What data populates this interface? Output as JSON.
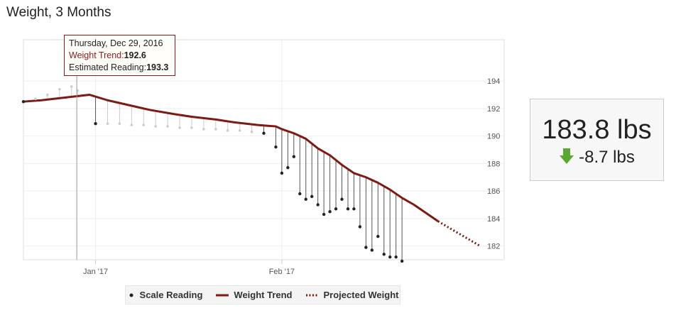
{
  "title": "Weight, 3 Months",
  "summary": {
    "current_weight": "183.8 lbs",
    "change": "-8.7 lbs",
    "change_icon": "down-arrow-icon",
    "change_icon_color": "#5aa832"
  },
  "tooltip": {
    "date": "Thursday, Dec 29, 2016",
    "trend_label": "Weight Trend:",
    "trend_value": "192.6",
    "estimated_label": "Estimated Reading:",
    "estimated_value": "193.3"
  },
  "legend": {
    "scale": "Scale Reading",
    "trend": "Weight Trend",
    "projected": "Projected Weight"
  },
  "colors": {
    "trend": "#7d1a14",
    "projected": "#7d1a14",
    "reading": "#222222",
    "estimated": "#cccccc"
  },
  "chart_data": {
    "type": "line",
    "ylim": [
      181,
      197
    ],
    "yticks": [
      182,
      184,
      186,
      188,
      190,
      192,
      194
    ],
    "xlim": [
      "2016-12-20",
      "2017-03-10"
    ],
    "xticks": [
      {
        "date": "2017-01-01",
        "label": "Jan '17"
      },
      {
        "date": "2017-02-01",
        "label": "Feb '17"
      }
    ],
    "grid": true,
    "legend_position": "bottom",
    "series": [
      {
        "name": "Weight Trend",
        "style": "solid",
        "points": [
          [
            "2016-12-20",
            192.5
          ],
          [
            "2016-12-23",
            192.6
          ],
          [
            "2016-12-27",
            192.8
          ],
          [
            "2016-12-31",
            193.0
          ],
          [
            "2017-01-03",
            192.6
          ],
          [
            "2017-01-07",
            192.2
          ],
          [
            "2017-01-10",
            191.9
          ],
          [
            "2017-01-14",
            191.6
          ],
          [
            "2017-01-17",
            191.4
          ],
          [
            "2017-01-21",
            191.2
          ],
          [
            "2017-01-24",
            191.0
          ],
          [
            "2017-01-28",
            190.8
          ],
          [
            "2017-01-31",
            190.7
          ],
          [
            "2017-02-01",
            190.5
          ],
          [
            "2017-02-03",
            190.2
          ],
          [
            "2017-02-05",
            189.8
          ],
          [
            "2017-02-07",
            189.1
          ],
          [
            "2017-02-09",
            188.6
          ],
          [
            "2017-02-11",
            187.9
          ],
          [
            "2017-02-13",
            187.3
          ],
          [
            "2017-02-15",
            187.0
          ],
          [
            "2017-02-17",
            186.6
          ],
          [
            "2017-02-19",
            186.1
          ],
          [
            "2017-02-21",
            185.5
          ],
          [
            "2017-02-23",
            185.0
          ],
          [
            "2017-02-25",
            184.4
          ],
          [
            "2017-02-27",
            183.8
          ]
        ]
      },
      {
        "name": "Projected Weight",
        "style": "dotted",
        "points": [
          [
            "2017-02-27",
            183.8
          ],
          [
            "2017-03-06",
            182.0
          ]
        ]
      },
      {
        "name": "Scale Reading",
        "style": "dots",
        "points": [
          [
            "2016-12-20",
            192.5
          ],
          [
            "2017-01-01",
            190.9
          ],
          [
            "2017-01-29",
            190.2
          ],
          [
            "2017-01-31",
            189.2
          ],
          [
            "2017-02-01",
            187.3
          ],
          [
            "2017-02-02",
            187.7
          ],
          [
            "2017-02-03",
            188.5
          ],
          [
            "2017-02-04",
            185.8
          ],
          [
            "2017-02-05",
            185.4
          ],
          [
            "2017-02-06",
            185.6
          ],
          [
            "2017-02-07",
            185.0
          ],
          [
            "2017-02-08",
            184.3
          ],
          [
            "2017-02-09",
            184.5
          ],
          [
            "2017-02-10",
            184.7
          ],
          [
            "2017-02-11",
            185.4
          ],
          [
            "2017-02-12",
            184.7
          ],
          [
            "2017-02-13",
            184.7
          ],
          [
            "2017-02-14",
            183.4
          ],
          [
            "2017-02-15",
            181.9
          ],
          [
            "2017-02-16",
            181.7
          ],
          [
            "2017-02-17",
            182.7
          ],
          [
            "2017-02-18",
            181.4
          ],
          [
            "2017-02-19",
            181.2
          ],
          [
            "2017-02-20",
            181.2
          ],
          [
            "2017-02-21",
            180.9
          ]
        ]
      },
      {
        "name": "Estimated Reading",
        "style": "faint-dots",
        "points": [
          [
            "2016-12-22",
            192.7
          ],
          [
            "2016-12-24",
            193.0
          ],
          [
            "2016-12-26",
            193.4
          ],
          [
            "2016-12-28",
            193.6
          ],
          [
            "2016-12-29",
            193.3
          ],
          [
            "2017-01-03",
            190.9
          ],
          [
            "2017-01-05",
            190.9
          ],
          [
            "2017-01-07",
            190.8
          ],
          [
            "2017-01-09",
            190.8
          ],
          [
            "2017-01-11",
            190.7
          ],
          [
            "2017-01-13",
            190.7
          ],
          [
            "2017-01-15",
            190.6
          ],
          [
            "2017-01-17",
            190.6
          ],
          [
            "2017-01-19",
            190.5
          ],
          [
            "2017-01-21",
            190.5
          ],
          [
            "2017-01-23",
            190.4
          ],
          [
            "2017-01-25",
            190.4
          ],
          [
            "2017-01-27",
            190.3
          ]
        ]
      }
    ]
  }
}
